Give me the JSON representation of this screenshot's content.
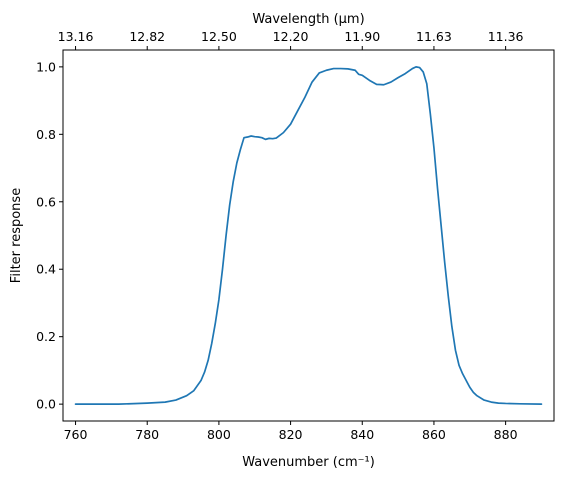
{
  "chart_data": {
    "type": "line",
    "title": "",
    "xlabel": "Wavenumber (cm⁻¹)",
    "ylabel": "Filter response",
    "top_xlabel": "Wavelength (μm)",
    "xlim": [
      756.5,
      893.5
    ],
    "ylim": [
      -0.05,
      1.05
    ],
    "grid": false,
    "x_ticks": [
      760,
      780,
      800,
      820,
      840,
      860,
      880
    ],
    "x_tick_labels": [
      "760",
      "780",
      "800",
      "820",
      "840",
      "860",
      "880"
    ],
    "y_ticks": [
      0.0,
      0.2,
      0.4,
      0.6,
      0.8,
      1.0
    ],
    "y_tick_labels": [
      "0.0",
      "0.2",
      "0.4",
      "0.6",
      "0.8",
      "1.0"
    ],
    "top_x_ticks": [
      760,
      780,
      800,
      820,
      840,
      860,
      880
    ],
    "top_x_tick_labels": [
      "13.16",
      "12.82",
      "12.50",
      "12.20",
      "11.90",
      "11.63",
      "11.36"
    ],
    "series": [
      {
        "color": "#1f77b4",
        "x": [
          760,
          772,
          780,
          785,
          788,
          791,
          793,
          795,
          796,
          797,
          798,
          799,
          800,
          801,
          802,
          803,
          804,
          805,
          806,
          807,
          808,
          809,
          810,
          811,
          812,
          813,
          814,
          815,
          816,
          818,
          820,
          822,
          824,
          826,
          828,
          830,
          832,
          834,
          836,
          838,
          839,
          840,
          842,
          844,
          846,
          848,
          850,
          852,
          854,
          855,
          856,
          857,
          858,
          859,
          860,
          861,
          862,
          863,
          864,
          865,
          866,
          867,
          868,
          869,
          870,
          871,
          872,
          874,
          876,
          878,
          880,
          884,
          890
        ],
        "y": [
          0.0,
          0.0,
          0.003,
          0.006,
          0.012,
          0.025,
          0.04,
          0.07,
          0.095,
          0.13,
          0.18,
          0.24,
          0.31,
          0.4,
          0.5,
          0.59,
          0.66,
          0.715,
          0.755,
          0.79,
          0.792,
          0.795,
          0.793,
          0.792,
          0.79,
          0.785,
          0.788,
          0.787,
          0.789,
          0.805,
          0.83,
          0.87,
          0.91,
          0.955,
          0.982,
          0.99,
          0.995,
          0.995,
          0.994,
          0.99,
          0.978,
          0.975,
          0.96,
          0.948,
          0.947,
          0.955,
          0.968,
          0.98,
          0.995,
          1.0,
          0.998,
          0.985,
          0.95,
          0.86,
          0.76,
          0.64,
          0.53,
          0.42,
          0.32,
          0.23,
          0.16,
          0.115,
          0.09,
          0.07,
          0.05,
          0.035,
          0.025,
          0.012,
          0.006,
          0.003,
          0.002,
          0.001,
          0.0
        ]
      }
    ]
  }
}
